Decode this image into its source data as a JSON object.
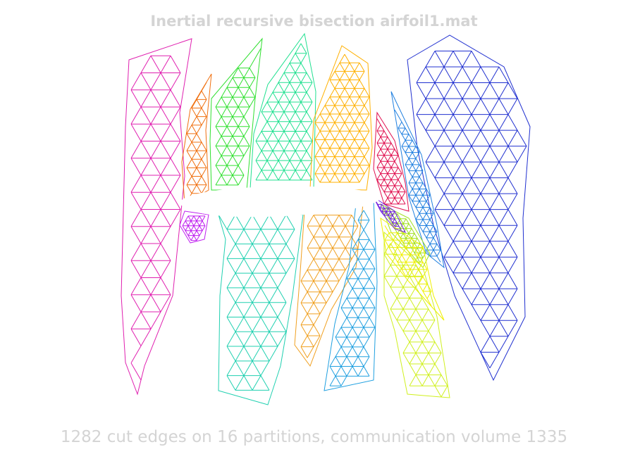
{
  "figure": {
    "title": "Inertial recursive bisection airfoil1.mat",
    "caption": "1282 cut edges on 16 partitions, communication volume 1335"
  },
  "partitions": [
    {
      "id": 1,
      "color": "#e020b0"
    },
    {
      "id": 2,
      "color": "#f07010"
    },
    {
      "id": 3,
      "color": "#30e030"
    },
    {
      "id": 4,
      "color": "#20e090"
    },
    {
      "id": 5,
      "color": "#ffb000"
    },
    {
      "id": 6,
      "color": "#2030d0"
    },
    {
      "id": 7,
      "color": "#e01050"
    },
    {
      "id": 8,
      "color": "#2080e0"
    },
    {
      "id": 9,
      "color": "#c020f0"
    },
    {
      "id": 10,
      "color": "#a0e020"
    },
    {
      "id": 11,
      "color": "#20d0b0"
    },
    {
      "id": 12,
      "color": "#f0a020"
    },
    {
      "id": 13,
      "color": "#20a0e0"
    },
    {
      "id": 14,
      "color": "#f0f000"
    },
    {
      "id": 15,
      "color": "#d0f020"
    },
    {
      "id": 16,
      "color": "#7020e0"
    }
  ]
}
